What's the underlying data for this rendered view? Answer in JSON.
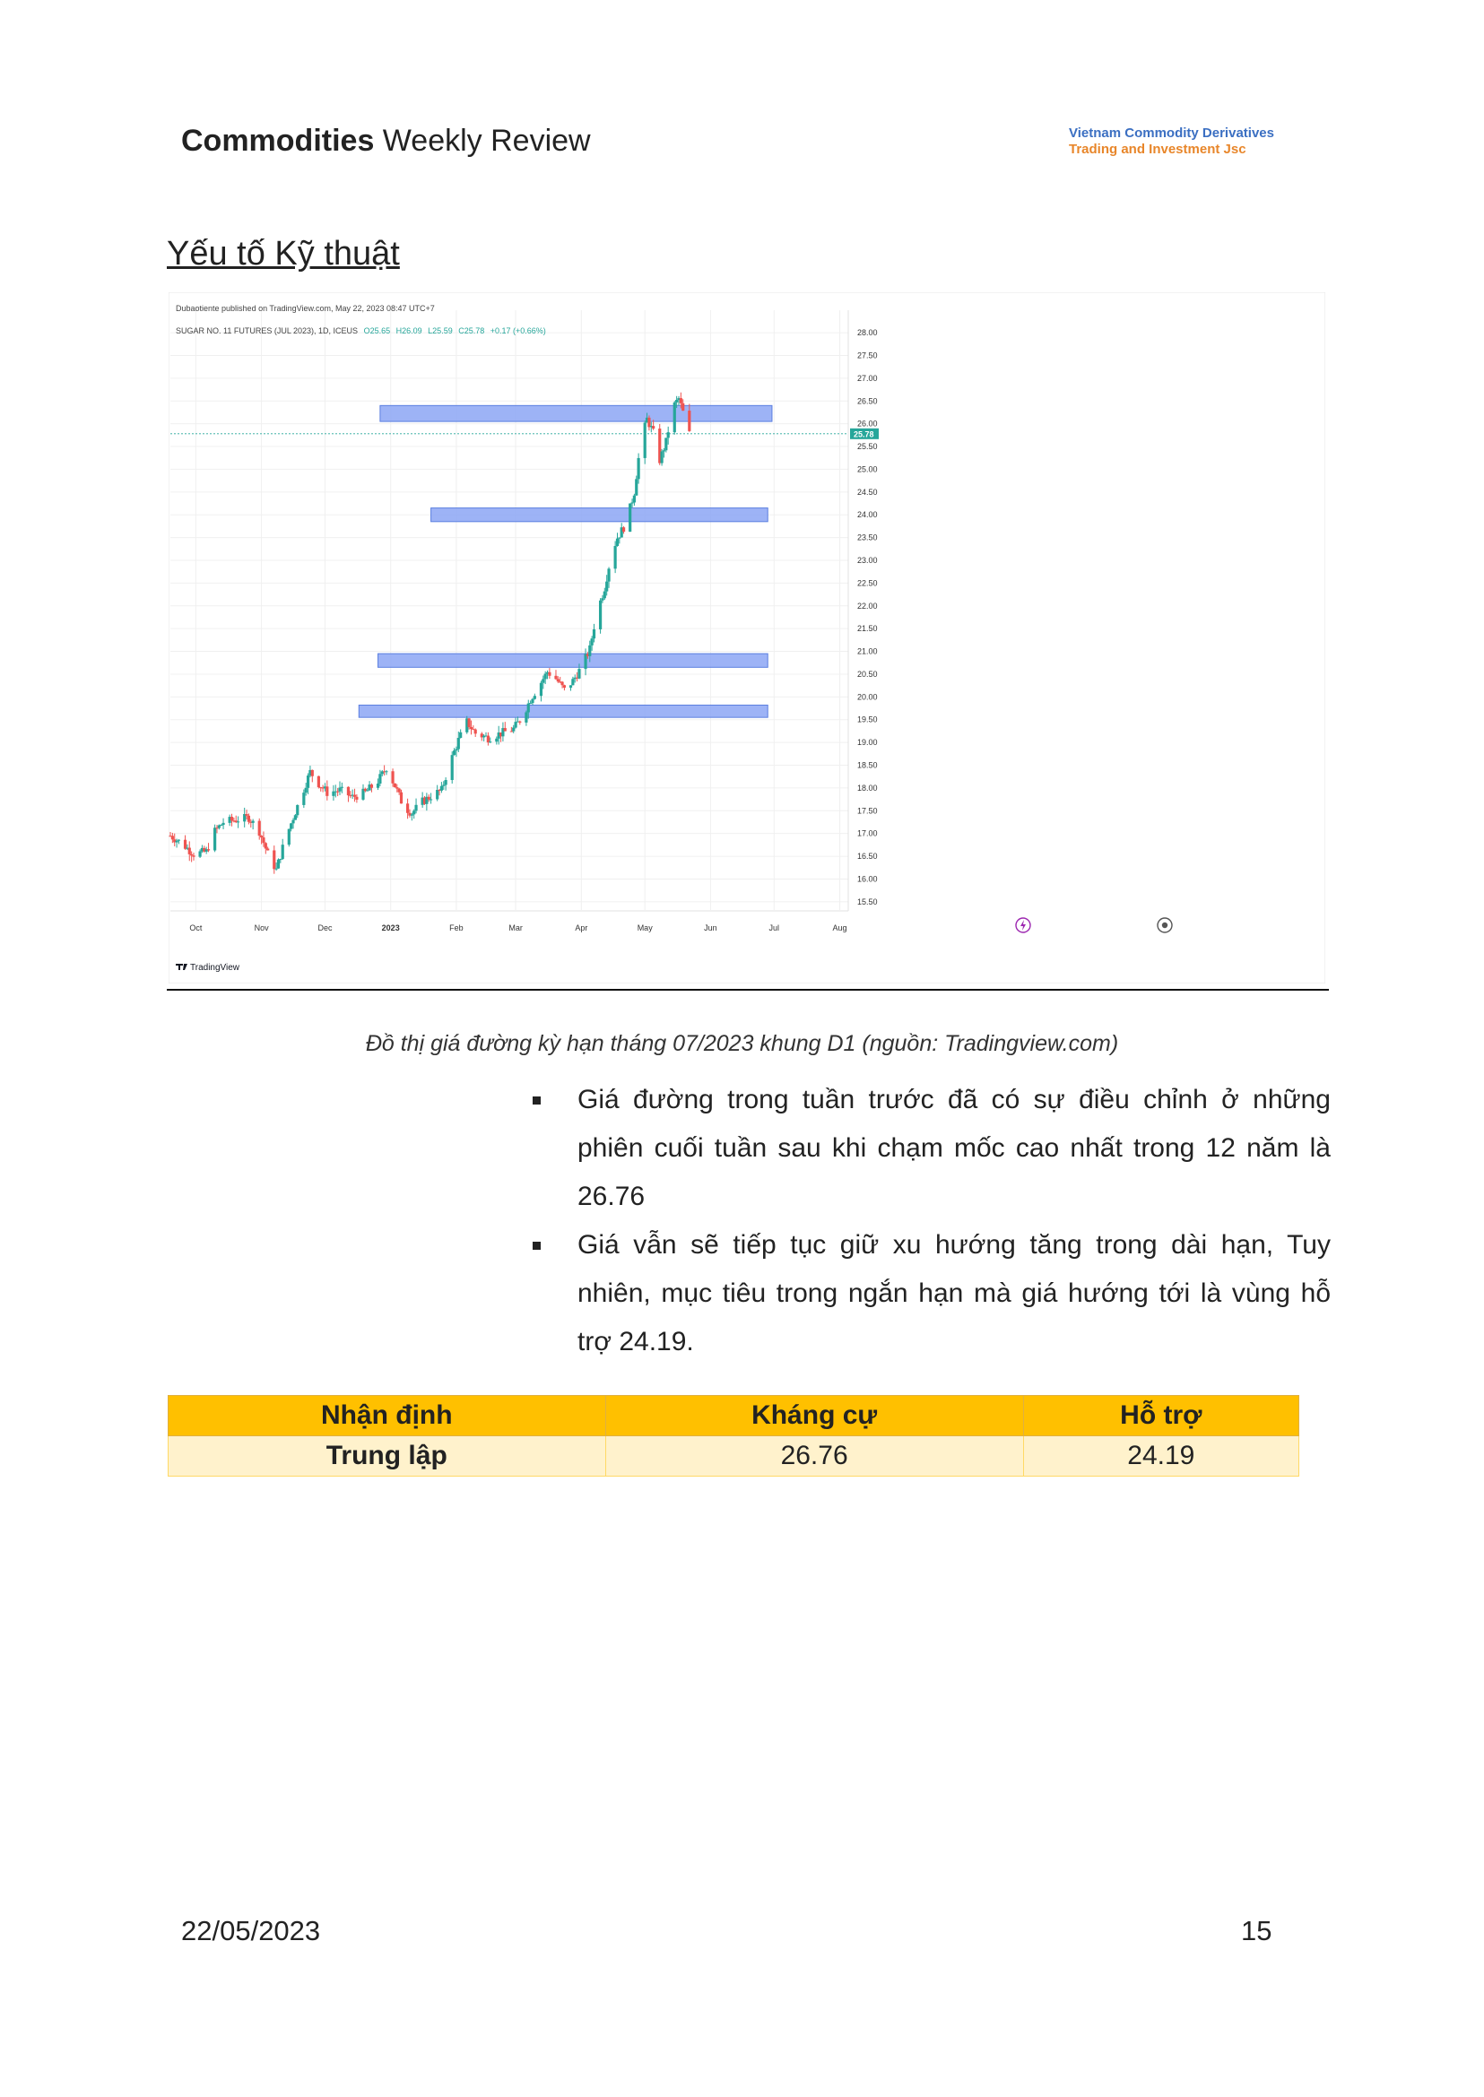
{
  "header": {
    "title_bold": "Commodities",
    "title_rest": " Weekly Review",
    "company_line1": "Vietnam Commodity Derivatives",
    "company_line2": "Trading and Investment Jsc"
  },
  "section_title": "Yếu tố Kỹ thuật",
  "chart_data": {
    "type": "candlestick",
    "published_line": "Dubaotiente published on TradingView.com, May 22, 2023 08:47 UTC+7",
    "symbol": "SUGAR NO. 11 FUTURES (JUL 2023), 1D, ICEUS",
    "ohlc_text": {
      "o": "O25.65",
      "h": "H26.09",
      "l": "L25.59",
      "c": "C25.78",
      "chg": "+0.17 (+0.66%)"
    },
    "last_price": "25.78",
    "ylim": [
      15.3,
      28.1
    ],
    "y_ticks": [
      "28.00",
      "27.50",
      "27.00",
      "26.50",
      "26.00",
      "25.50",
      "25.00",
      "24.50",
      "24.00",
      "23.50",
      "23.00",
      "22.50",
      "22.00",
      "21.50",
      "21.00",
      "20.50",
      "20.00",
      "19.50",
      "19.00",
      "18.50",
      "18.00",
      "17.50",
      "17.00",
      "16.50",
      "16.00",
      "15.50"
    ],
    "x_ticks": [
      {
        "label": "Oct",
        "date": "2022-10-01"
      },
      {
        "label": "Nov",
        "date": "2022-11-01"
      },
      {
        "label": "Dec",
        "date": "2022-12-01"
      },
      {
        "label": "2023",
        "date": "2023-01-01",
        "bold": true
      },
      {
        "label": "Feb",
        "date": "2023-02-01"
      },
      {
        "label": "Mar",
        "date": "2023-03-01"
      },
      {
        "label": "Apr",
        "date": "2023-04-01"
      },
      {
        "label": "May",
        "date": "2023-05-01"
      },
      {
        "label": "Jun",
        "date": "2023-06-01"
      },
      {
        "label": "Jul",
        "date": "2023-07-01"
      },
      {
        "label": "Aug",
        "date": "2023-08-01"
      }
    ],
    "x_range": [
      "2022-09-19",
      "2023-08-05"
    ],
    "price_path": [
      [
        "2022-09-19",
        16.95
      ],
      [
        "2022-09-24",
        16.8
      ],
      [
        "2022-09-30",
        16.55
      ],
      [
        "2022-10-06",
        16.6
      ],
      [
        "2022-10-10",
        17.05
      ],
      [
        "2022-10-14",
        17.25
      ],
      [
        "2022-10-20",
        17.3
      ],
      [
        "2022-10-26",
        17.35
      ],
      [
        "2022-10-31",
        17.05
      ],
      [
        "2022-11-04",
        16.55
      ],
      [
        "2022-11-08",
        16.2
      ],
      [
        "2022-11-12",
        16.85
      ],
      [
        "2022-11-16",
        17.35
      ],
      [
        "2022-11-20",
        17.85
      ],
      [
        "2022-11-24",
        18.35
      ],
      [
        "2022-11-28",
        18.1
      ],
      [
        "2022-12-02",
        17.9
      ],
      [
        "2022-12-08",
        17.95
      ],
      [
        "2022-12-14",
        17.8
      ],
      [
        "2022-12-20",
        17.9
      ],
      [
        "2022-12-26",
        18.15
      ],
      [
        "2022-12-30",
        18.45
      ],
      [
        "2023-01-03",
        18.05
      ],
      [
        "2023-01-07",
        17.6
      ],
      [
        "2023-01-11",
        17.45
      ],
      [
        "2023-01-16",
        17.7
      ],
      [
        "2023-01-21",
        17.85
      ],
      [
        "2023-01-25",
        17.95
      ],
      [
        "2023-01-29",
        18.55
      ],
      [
        "2023-02-02",
        19.05
      ],
      [
        "2023-02-06",
        19.45
      ],
      [
        "2023-02-10",
        19.2
      ],
      [
        "2023-02-16",
        19.1
      ],
      [
        "2023-02-22",
        19.2
      ],
      [
        "2023-02-28",
        19.3
      ],
      [
        "2023-03-04",
        19.55
      ],
      [
        "2023-03-08",
        19.95
      ],
      [
        "2023-03-12",
        20.25
      ],
      [
        "2023-03-16",
        20.55
      ],
      [
        "2023-03-20",
        20.4
      ],
      [
        "2023-03-24",
        20.15
      ],
      [
        "2023-03-28",
        20.35
      ],
      [
        "2023-04-01",
        20.65
      ],
      [
        "2023-04-05",
        21.05
      ],
      [
        "2023-04-08",
        21.8
      ],
      [
        "2023-04-12",
        22.4
      ],
      [
        "2023-04-15",
        23.1
      ],
      [
        "2023-04-18",
        23.5
      ],
      [
        "2023-04-22",
        23.8
      ],
      [
        "2023-04-26",
        24.5
      ],
      [
        "2023-04-29",
        25.6
      ],
      [
        "2023-05-02",
        26.1
      ],
      [
        "2023-05-05",
        25.8
      ],
      [
        "2023-05-08",
        25.2
      ],
      [
        "2023-05-11",
        25.6
      ],
      [
        "2023-05-14",
        26.35
      ],
      [
        "2023-05-17",
        26.55
      ],
      [
        "2023-05-20",
        26.1
      ],
      [
        "2023-05-22",
        25.78
      ]
    ],
    "zones": [
      {
        "from": "2022-12-27",
        "to": "2023-06-30",
        "top": 26.4,
        "bottom": 26.05
      },
      {
        "from": "2023-01-20",
        "to": "2023-06-28",
        "top": 24.15,
        "bottom": 23.85
      },
      {
        "from": "2022-12-26",
        "to": "2023-06-28",
        "top": 20.95,
        "bottom": 20.65
      },
      {
        "from": "2022-12-17",
        "to": "2023-06-28",
        "top": 19.82,
        "bottom": 19.55
      }
    ],
    "colors": {
      "up": "#26a69a",
      "down": "#ef5350",
      "zone": "#8ca6f5",
      "zone_border": "#5b7fe0",
      "price_badge": "#26a69a"
    },
    "footer_logo": "TradingView"
  },
  "caption": "Đồ thị giá đường kỳ hạn tháng 07/2023 khung D1 (nguồn: Tradingview.com)",
  "bullets": [
    "Giá đường trong tuần trước đã có sự điều chỉnh ở những phiên cuối tuần sau khi chạm mốc cao nhất trong 12 năm là 26.76",
    "Giá vẫn sẽ tiếp tục giữ xu hướng tăng trong dài hạn, Tuy nhiên, mục tiêu trong ngắn hạn mà giá hướng tới là vùng hỗ trợ 24.19."
  ],
  "table": {
    "headers": [
      "Nhận định",
      "Kháng cự",
      "Hỗ trợ"
    ],
    "row": [
      "Trung lập",
      "26.76",
      "24.19"
    ]
  },
  "footer": {
    "date": "22/05/2023",
    "page": "15"
  }
}
